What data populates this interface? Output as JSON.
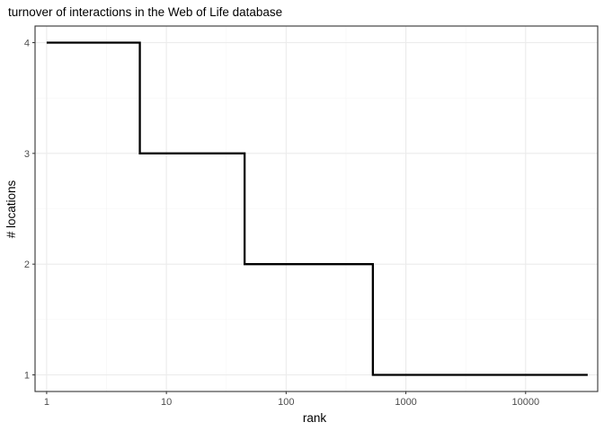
{
  "chart_data": {
    "type": "line",
    "step": true,
    "title": "turnover of interactions in the Web of Life database",
    "xlabel": "rank",
    "ylabel": "# locations",
    "x_scale": "log10",
    "xlim": [
      0.8,
      40000
    ],
    "ylim": [
      0.85,
      4.15
    ],
    "x_ticks": [
      1,
      10,
      100,
      1000,
      10000
    ],
    "x_tick_labels": [
      "1",
      "10",
      "100",
      "1000",
      "10000"
    ],
    "y_ticks": [
      1,
      2,
      3,
      4
    ],
    "y_tick_labels": [
      "1",
      "2",
      "3",
      "4"
    ],
    "grid": true,
    "legend": "none",
    "series": [
      {
        "color": "#000000",
        "x": [
          1,
          6,
          6,
          45,
          45,
          530,
          530,
          33000
        ],
        "y": [
          4,
          4,
          3,
          3,
          2,
          2,
          1,
          1
        ]
      }
    ],
    "colors": {
      "panel_border": "#333333",
      "grid_major": "#ebebeb",
      "grid_minor": "#f5f5f5",
      "tick_text": "#4d4d4d"
    }
  }
}
